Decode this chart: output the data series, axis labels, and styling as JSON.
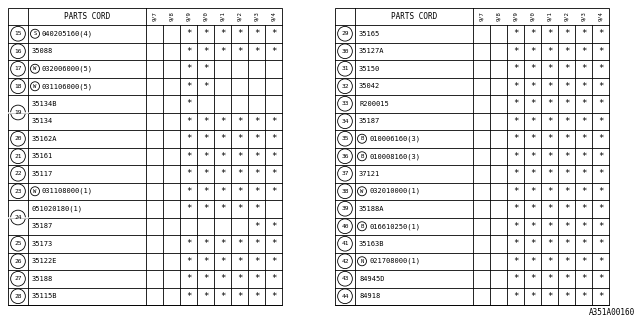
{
  "watermark": "A351A00160",
  "col_headers": [
    "9/7",
    "9/8",
    "9/9",
    "9/0",
    "9/1",
    "9/2",
    "9/3",
    "9/4"
  ],
  "left_table": {
    "rows": [
      {
        "num": "15",
        "num_span": 1,
        "circle_prefix": "S",
        "part": "040205160(4)",
        "marks": [
          0,
          0,
          1,
          1,
          1,
          1,
          1,
          1
        ]
      },
      {
        "num": "16",
        "num_span": 1,
        "circle_prefix": "",
        "part": "35088",
        "marks": [
          0,
          0,
          1,
          1,
          1,
          1,
          1,
          1
        ]
      },
      {
        "num": "17",
        "num_span": 1,
        "circle_prefix": "W",
        "part": "032006000(5)",
        "marks": [
          0,
          0,
          1,
          1,
          0,
          0,
          0,
          0
        ]
      },
      {
        "num": "18",
        "num_span": 1,
        "circle_prefix": "W",
        "part": "031106000(5)",
        "marks": [
          0,
          0,
          1,
          1,
          0,
          0,
          0,
          0
        ]
      },
      {
        "num": "19",
        "num_span": 2,
        "circle_prefix": "",
        "part": "35134B",
        "marks": [
          0,
          0,
          1,
          0,
          0,
          0,
          0,
          0
        ]
      },
      {
        "num": "",
        "num_span": 0,
        "circle_prefix": "",
        "part": "35134",
        "marks": [
          0,
          0,
          1,
          1,
          1,
          1,
          1,
          1
        ]
      },
      {
        "num": "20",
        "num_span": 1,
        "circle_prefix": "",
        "part": "35162A",
        "marks": [
          0,
          0,
          1,
          1,
          1,
          1,
          1,
          1
        ]
      },
      {
        "num": "21",
        "num_span": 1,
        "circle_prefix": "",
        "part": "35161",
        "marks": [
          0,
          0,
          1,
          1,
          1,
          1,
          1,
          1
        ]
      },
      {
        "num": "22",
        "num_span": 1,
        "circle_prefix": "",
        "part": "35117",
        "marks": [
          0,
          0,
          1,
          1,
          1,
          1,
          1,
          1
        ]
      },
      {
        "num": "23",
        "num_span": 1,
        "circle_prefix": "W",
        "part": "031108000(1)",
        "marks": [
          0,
          0,
          1,
          1,
          1,
          1,
          1,
          1
        ]
      },
      {
        "num": "24",
        "num_span": 2,
        "circle_prefix": "",
        "part": "051020180(1)",
        "marks": [
          0,
          0,
          1,
          1,
          1,
          1,
          1,
          0
        ]
      },
      {
        "num": "",
        "num_span": 0,
        "circle_prefix": "",
        "part": "35187",
        "marks": [
          0,
          0,
          0,
          0,
          0,
          0,
          1,
          1
        ]
      },
      {
        "num": "25",
        "num_span": 1,
        "circle_prefix": "",
        "part": "35173",
        "marks": [
          0,
          0,
          1,
          1,
          1,
          1,
          1,
          1
        ]
      },
      {
        "num": "26",
        "num_span": 1,
        "circle_prefix": "",
        "part": "35122E",
        "marks": [
          0,
          0,
          1,
          1,
          1,
          1,
          1,
          1
        ]
      },
      {
        "num": "27",
        "num_span": 1,
        "circle_prefix": "",
        "part": "35188",
        "marks": [
          0,
          0,
          1,
          1,
          1,
          1,
          1,
          1
        ]
      },
      {
        "num": "28",
        "num_span": 1,
        "circle_prefix": "",
        "part": "35115B",
        "marks": [
          0,
          0,
          1,
          1,
          1,
          1,
          1,
          1
        ]
      }
    ]
  },
  "right_table": {
    "rows": [
      {
        "num": "29",
        "num_span": 1,
        "circle_prefix": "",
        "part": "35165",
        "marks": [
          0,
          0,
          1,
          1,
          1,
          1,
          1,
          1
        ]
      },
      {
        "num": "30",
        "num_span": 1,
        "circle_prefix": "",
        "part": "35127A",
        "marks": [
          0,
          0,
          1,
          1,
          1,
          1,
          1,
          1
        ]
      },
      {
        "num": "31",
        "num_span": 1,
        "circle_prefix": "",
        "part": "35150",
        "marks": [
          0,
          0,
          1,
          1,
          1,
          1,
          1,
          1
        ]
      },
      {
        "num": "32",
        "num_span": 1,
        "circle_prefix": "",
        "part": "35042",
        "marks": [
          0,
          0,
          1,
          1,
          1,
          1,
          1,
          1
        ]
      },
      {
        "num": "33",
        "num_span": 1,
        "circle_prefix": "",
        "part": "R200015",
        "marks": [
          0,
          0,
          1,
          1,
          1,
          1,
          1,
          1
        ]
      },
      {
        "num": "34",
        "num_span": 1,
        "circle_prefix": "",
        "part": "35187",
        "marks": [
          0,
          0,
          1,
          1,
          1,
          1,
          1,
          1
        ]
      },
      {
        "num": "35",
        "num_span": 1,
        "circle_prefix": "B",
        "part": "010006160(3)",
        "marks": [
          0,
          0,
          1,
          1,
          1,
          1,
          1,
          1
        ]
      },
      {
        "num": "36",
        "num_span": 1,
        "circle_prefix": "B",
        "part": "010008160(3)",
        "marks": [
          0,
          0,
          1,
          1,
          1,
          1,
          1,
          1
        ]
      },
      {
        "num": "37",
        "num_span": 1,
        "circle_prefix": "",
        "part": "37121",
        "marks": [
          0,
          0,
          1,
          1,
          1,
          1,
          1,
          1
        ]
      },
      {
        "num": "38",
        "num_span": 1,
        "circle_prefix": "W",
        "part": "032010000(1)",
        "marks": [
          0,
          0,
          1,
          1,
          1,
          1,
          1,
          1
        ]
      },
      {
        "num": "39",
        "num_span": 1,
        "circle_prefix": "",
        "part": "35188A",
        "marks": [
          0,
          0,
          1,
          1,
          1,
          1,
          1,
          1
        ]
      },
      {
        "num": "40",
        "num_span": 1,
        "circle_prefix": "B",
        "part": "016610250(1)",
        "marks": [
          0,
          0,
          1,
          1,
          1,
          1,
          1,
          1
        ]
      },
      {
        "num": "41",
        "num_span": 1,
        "circle_prefix": "",
        "part": "35163B",
        "marks": [
          0,
          0,
          1,
          1,
          1,
          1,
          1,
          1
        ]
      },
      {
        "num": "42",
        "num_span": 1,
        "circle_prefix": "N",
        "part": "021708000(1)",
        "marks": [
          0,
          0,
          1,
          1,
          1,
          1,
          1,
          1
        ]
      },
      {
        "num": "43",
        "num_span": 1,
        "circle_prefix": "",
        "part": "84945D",
        "marks": [
          0,
          0,
          1,
          1,
          1,
          1,
          1,
          1
        ]
      },
      {
        "num": "44",
        "num_span": 1,
        "circle_prefix": "",
        "part": "84918",
        "marks": [
          0,
          0,
          1,
          1,
          1,
          1,
          1,
          1
        ]
      }
    ]
  },
  "bg_color": "#ffffff"
}
